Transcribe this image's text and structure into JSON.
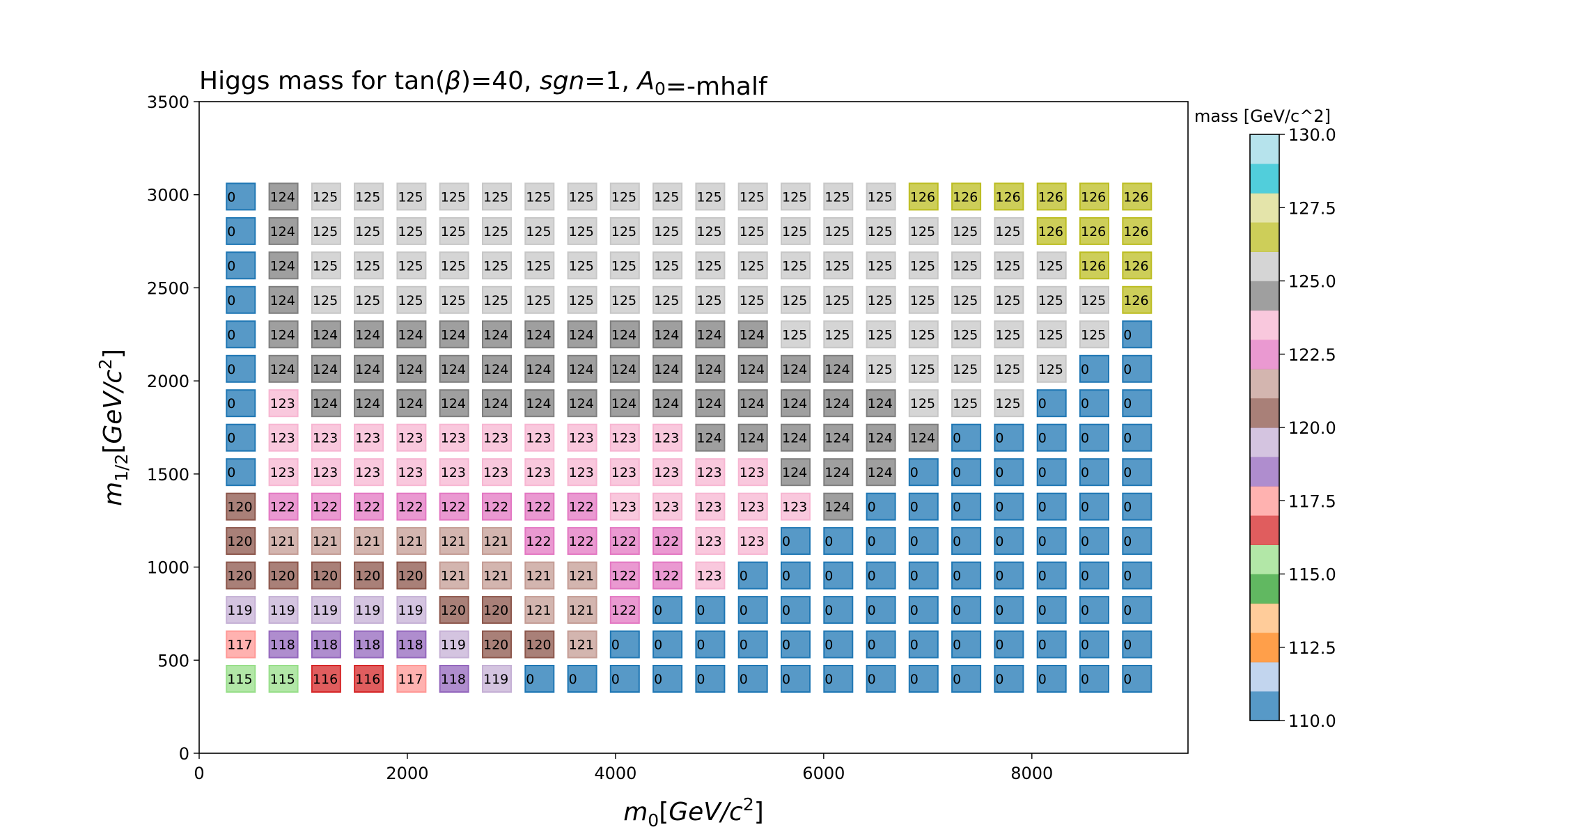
{
  "chart_data": {
    "type": "scatter",
    "title": "Higgs mass for tan(β)=40, sgn=1, A₀=-mhalf",
    "xlabel": "m₀[GeV/c²]",
    "ylabel": "m₁/₂[GeV/c²]",
    "xlim": [
      0,
      9500
    ],
    "ylim": [
      0,
      3500
    ],
    "xticks": [
      "0",
      "2000",
      "4000",
      "6000",
      "8000"
    ],
    "yticks": [
      "0",
      "500",
      "1000",
      "1500",
      "2000",
      "2500",
      "3000",
      "3500"
    ],
    "x": [
      400,
      810,
      1220,
      1630,
      2040,
      2450,
      2860,
      3270,
      3680,
      4090,
      4500,
      4910,
      5320,
      5730,
      6140,
      6550,
      6960,
      7370,
      7780,
      8190,
      8600,
      9010
    ],
    "y": [
      400,
      585,
      770,
      955,
      1140,
      1325,
      1510,
      1695,
      1880,
      2065,
      2250,
      2435,
      2620,
      2805,
      2990
    ],
    "values": [
      [
        115,
        115,
        116,
        116,
        117,
        118,
        119,
        0,
        0,
        0,
        0,
        0,
        0,
        0,
        0,
        0,
        0,
        0,
        0,
        0,
        0,
        0
      ],
      [
        117,
        118,
        118,
        118,
        118,
        119,
        120,
        120,
        121,
        0,
        0,
        0,
        0,
        0,
        0,
        0,
        0,
        0,
        0,
        0,
        0,
        0
      ],
      [
        119,
        119,
        119,
        119,
        119,
        120,
        120,
        121,
        121,
        122,
        0,
        0,
        0,
        0,
        0,
        0,
        0,
        0,
        0,
        0,
        0,
        0
      ],
      [
        120,
        120,
        120,
        120,
        120,
        121,
        121,
        121,
        121,
        122,
        122,
        123,
        0,
        0,
        0,
        0,
        0,
        0,
        0,
        0,
        0,
        0
      ],
      [
        120,
        121,
        121,
        121,
        121,
        121,
        121,
        122,
        122,
        122,
        122,
        123,
        123,
        0,
        0,
        0,
        0,
        0,
        0,
        0,
        0,
        0
      ],
      [
        120,
        122,
        122,
        122,
        122,
        122,
        122,
        122,
        122,
        123,
        123,
        123,
        123,
        123,
        124,
        0,
        0,
        0,
        0,
        0,
        0,
        0
      ],
      [
        0,
        123,
        123,
        123,
        123,
        123,
        123,
        123,
        123,
        123,
        123,
        123,
        123,
        124,
        124,
        124,
        0,
        0,
        0,
        0,
        0,
        0
      ],
      [
        0,
        123,
        123,
        123,
        123,
        123,
        123,
        123,
        123,
        123,
        123,
        124,
        124,
        124,
        124,
        124,
        124,
        0,
        0,
        0,
        0,
        0
      ],
      [
        0,
        123,
        124,
        124,
        124,
        124,
        124,
        124,
        124,
        124,
        124,
        124,
        124,
        124,
        124,
        124,
        125,
        125,
        125,
        0,
        0,
        0
      ],
      [
        0,
        124,
        124,
        124,
        124,
        124,
        124,
        124,
        124,
        124,
        124,
        124,
        124,
        124,
        124,
        125,
        125,
        125,
        125,
        125,
        0,
        0
      ],
      [
        0,
        124,
        124,
        124,
        124,
        124,
        124,
        124,
        124,
        124,
        124,
        124,
        124,
        125,
        125,
        125,
        125,
        125,
        125,
        125,
        125,
        0
      ],
      [
        0,
        124,
        125,
        125,
        125,
        125,
        125,
        125,
        125,
        125,
        125,
        125,
        125,
        125,
        125,
        125,
        125,
        125,
        125,
        125,
        125,
        126
      ],
      [
        0,
        124,
        125,
        125,
        125,
        125,
        125,
        125,
        125,
        125,
        125,
        125,
        125,
        125,
        125,
        125,
        125,
        125,
        125,
        125,
        126,
        126
      ],
      [
        0,
        124,
        125,
        125,
        125,
        125,
        125,
        125,
        125,
        125,
        125,
        125,
        125,
        125,
        125,
        125,
        125,
        125,
        125,
        126,
        126,
        126
      ],
      [
        0,
        124,
        125,
        125,
        125,
        125,
        125,
        125,
        125,
        125,
        125,
        125,
        125,
        125,
        125,
        125,
        126,
        126,
        126,
        126,
        126,
        126
      ]
    ],
    "colorbar": {
      "label": "mass [GeV/c^2]",
      "vmin": 110,
      "vmax": 130,
      "ticks": [
        "110.0",
        "112.5",
        "115.0",
        "117.5",
        "120.0",
        "122.5",
        "125.0",
        "127.5",
        "130.0"
      ],
      "colors": [
        "#1f77b4",
        "#aec7e8",
        "#ff7f0e",
        "#ffbb78",
        "#2ca02c",
        "#98df8a",
        "#d62728",
        "#ff9896",
        "#9467bd",
        "#c5b0d5",
        "#8c564b",
        "#c49c94",
        "#e377c2",
        "#f7b6d2",
        "#7f7f7f",
        "#c7c7c7",
        "#bcbd22",
        "#dbdb8d",
        "#17becf",
        "#9edae5"
      ]
    },
    "grid": false,
    "legend": "none"
  }
}
